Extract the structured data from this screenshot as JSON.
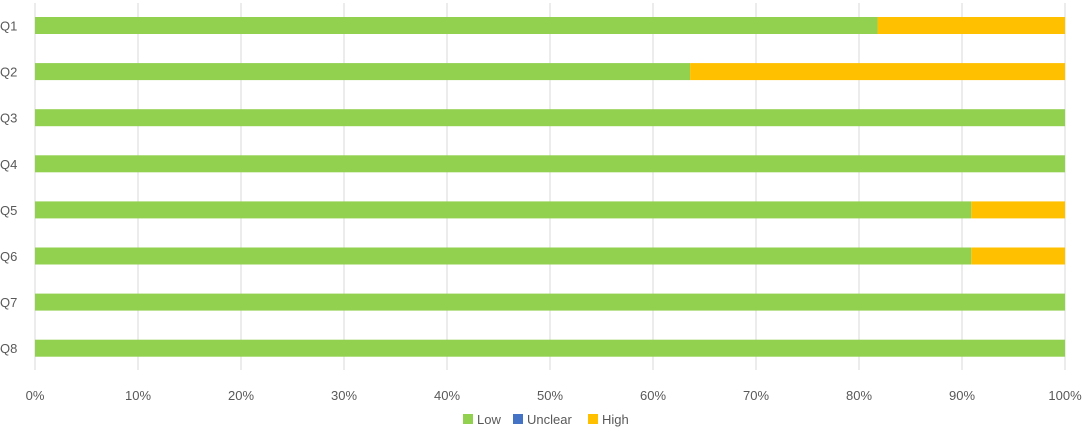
{
  "chart_data": {
    "type": "bar",
    "orientation": "horizontal",
    "stacked": "100%",
    "categories": [
      "Q1",
      "Q2",
      "Q3",
      "Q4",
      "Q5",
      "Q6",
      "Q7",
      "Q8"
    ],
    "series": [
      {
        "name": "Low",
        "color": "#92D050",
        "values": [
          81.8,
          63.6,
          100,
          100,
          90.9,
          90.9,
          100,
          100
        ]
      },
      {
        "name": "Unclear",
        "color": "#4472C4",
        "values": [
          0,
          0,
          0,
          0,
          0,
          0,
          0,
          0
        ]
      },
      {
        "name": "High",
        "color": "#FFC000",
        "values": [
          18.2,
          36.4,
          0,
          0,
          9.1,
          9.1,
          0,
          0
        ]
      }
    ],
    "x_ticks": [
      "0%",
      "10%",
      "20%",
      "30%",
      "40%",
      "50%",
      "60%",
      "70%",
      "80%",
      "90%",
      "100%"
    ],
    "xlim": [
      0,
      100
    ],
    "grid": true,
    "legend_position": "bottom",
    "title": "",
    "xlabel": "",
    "ylabel": ""
  }
}
